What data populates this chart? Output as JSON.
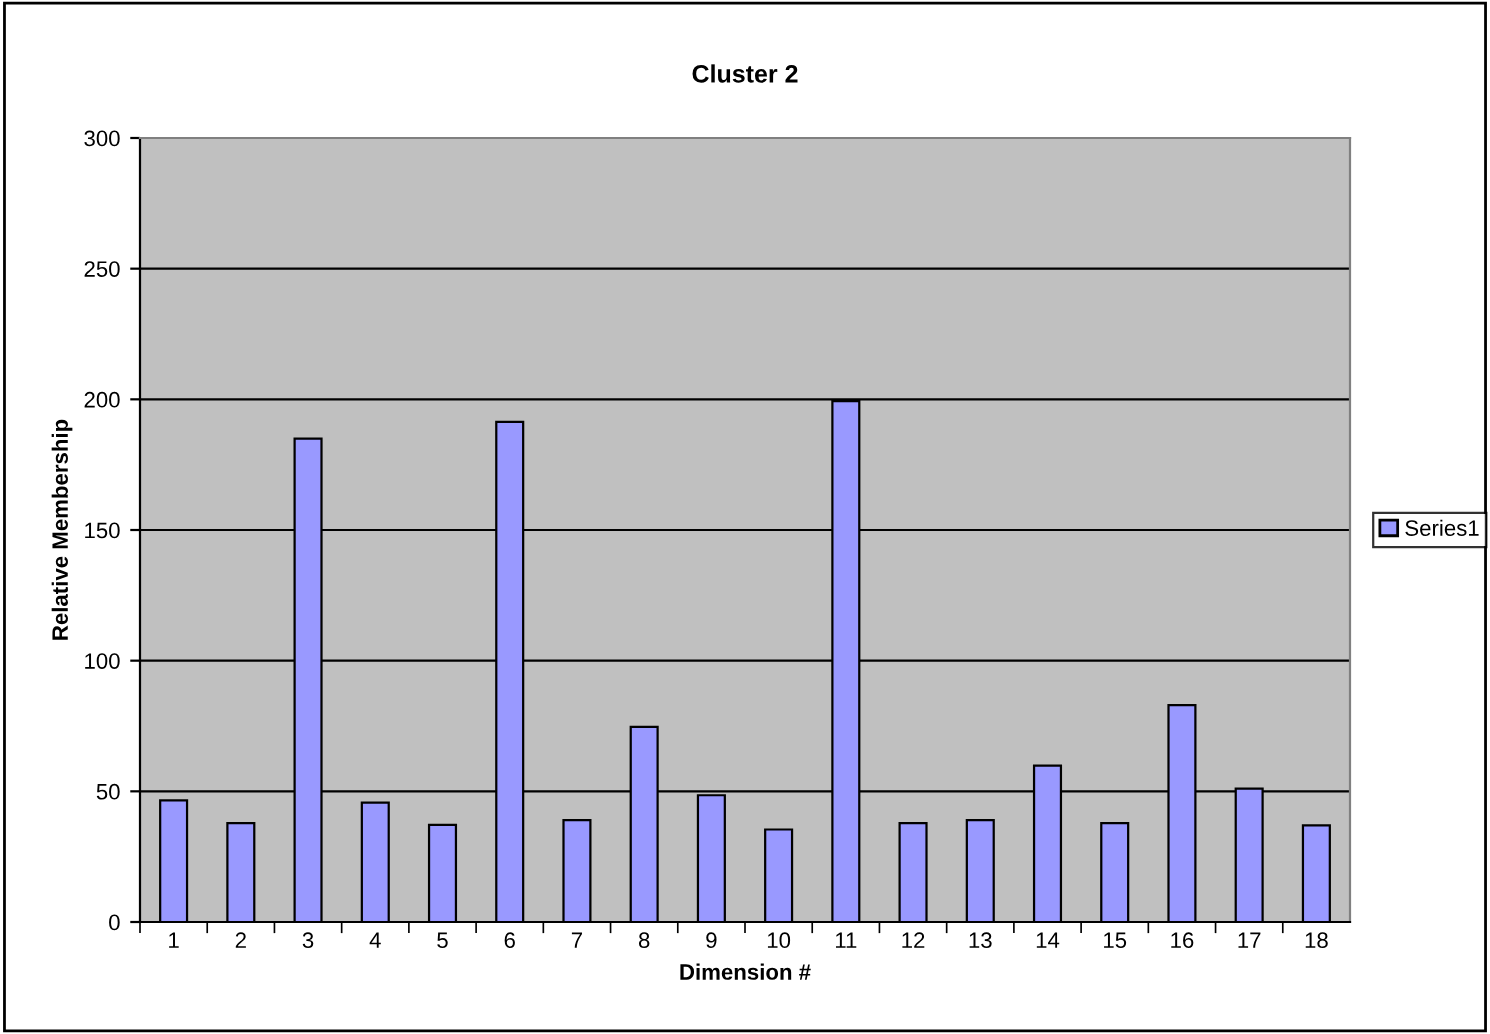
{
  "chart_data": {
    "type": "bar",
    "title": "Cluster 2",
    "xlabel": "Dimension #",
    "ylabel": "Relative Membership",
    "categories": [
      "1",
      "2",
      "3",
      "4",
      "5",
      "6",
      "7",
      "8",
      "9",
      "10",
      "11",
      "12",
      "13",
      "14",
      "15",
      "16",
      "17",
      "18"
    ],
    "series": [
      {
        "name": "Series1",
        "color": "#9999ff",
        "values": [
          46.5,
          37.8,
          185,
          45.7,
          37.2,
          191.4,
          39,
          74.7,
          48.5,
          35.4,
          199.3,
          37.8,
          39,
          59.8,
          37.8,
          83,
          51,
          37
        ]
      }
    ],
    "ylim": [
      0,
      300
    ],
    "yticks": [
      0,
      50,
      100,
      150,
      200,
      250,
      300
    ],
    "grid": "y",
    "legend": "right"
  }
}
